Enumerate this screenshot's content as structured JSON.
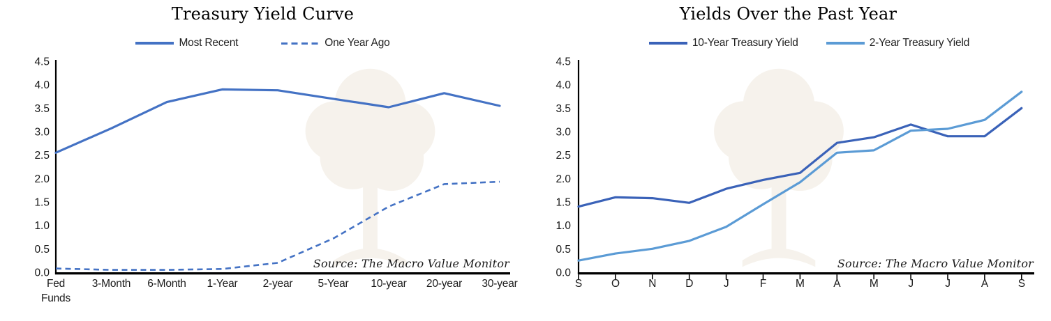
{
  "page": {
    "background": "#ffffff",
    "axis_color": "#000000",
    "text_color": "#1a1a1a"
  },
  "chart_data": [
    {
      "type": "line",
      "title": "Treasury Yield Curve",
      "source_note": "Source: The Macro Value Monitor",
      "legend_position": "top",
      "grid": false,
      "ylim": [
        0,
        4.5
      ],
      "y_tick_labels": [
        "0.0",
        "0.5",
        "1.0",
        "1.5",
        "2.0",
        "2.5",
        "3.0",
        "3.5",
        "4.0",
        "4.5"
      ],
      "categories": [
        "Fed\nFunds",
        "3-Month",
        "6-Month",
        "1-Year",
        "2-year",
        "5-Year",
        "10-year",
        "20-year",
        "30-year"
      ],
      "x_axis_tick_marks": false,
      "series": [
        {
          "name": "Most Recent",
          "color": "#4472C4",
          "style": "solid",
          "values": [
            2.55,
            3.07,
            3.63,
            3.9,
            3.88,
            3.7,
            3.52,
            3.82,
            3.55
          ]
        },
        {
          "name": "One Year Ago",
          "color": "#4472C4",
          "style": "dashed",
          "values": [
            0.08,
            0.05,
            0.05,
            0.07,
            0.2,
            0.72,
            1.4,
            1.88,
            1.93
          ]
        }
      ]
    },
    {
      "type": "line",
      "title": "Yields Over the Past Year",
      "source_note": "Source: The Macro Value Monitor",
      "legend_position": "top",
      "grid": false,
      "ylim": [
        0,
        4.5
      ],
      "y_tick_labels": [
        "0.0",
        "0.5",
        "1.0",
        "1.5",
        "2.0",
        "2.5",
        "3.0",
        "3.5",
        "4.0",
        "4.5"
      ],
      "categories": [
        "S",
        "O",
        "N",
        "D",
        "J",
        "F",
        "M",
        "A",
        "M",
        "J",
        "J",
        "A",
        "S"
      ],
      "x_axis_tick_marks": true,
      "series": [
        {
          "name": "10-Year Treasury Yield",
          "color": "#3A62B8",
          "style": "solid",
          "values": [
            1.4,
            1.6,
            1.58,
            1.48,
            1.78,
            1.97,
            2.12,
            2.76,
            2.88,
            3.15,
            2.9,
            2.9,
            3.5
          ]
        },
        {
          "name": "2-Year Treasury Yield",
          "color": "#5B9BD5",
          "style": "solid",
          "values": [
            0.25,
            0.4,
            0.5,
            0.67,
            0.97,
            1.45,
            1.92,
            2.55,
            2.6,
            3.02,
            3.06,
            3.25,
            3.85
          ]
        }
      ]
    }
  ]
}
